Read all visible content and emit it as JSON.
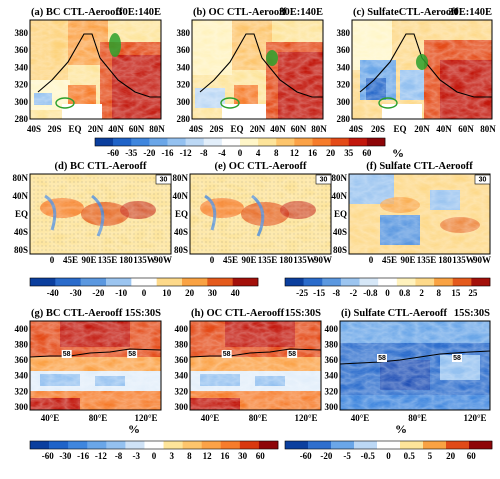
{
  "chart_data": [
    {
      "type": "heatmap",
      "panels": [
        {
          "label": "(a)",
          "title": "BC CTL-Aerooff",
          "region": "30E:140E"
        },
        {
          "label": "(b)",
          "title": "OC CTL-Aerooff",
          "region": "30E:140E"
        },
        {
          "label": "(c)",
          "title": "SulfateCTL-Aerooff",
          "region": "30E:140E"
        }
      ],
      "x_ticks": [
        "40S",
        "20S",
        "EQ",
        "20N",
        "40N",
        "60N",
        "80N"
      ],
      "xlim": [
        -45,
        85
      ],
      "y_ticks": [
        280,
        300,
        320,
        340,
        360,
        380
      ],
      "ylim": [
        280,
        395
      ],
      "colorbar": {
        "ticks": [
          "-60",
          "-35",
          "-20",
          "-16",
          "-12",
          "-8",
          "-4",
          "0",
          "4",
          "8",
          "12",
          "16",
          "20",
          "35",
          "60"
        ],
        "colors": [
          "#0b3f9e",
          "#1f63c8",
          "#3f86de",
          "#6aa6e8",
          "#94c1f0",
          "#bcd8f5",
          "#e2eefa",
          "#ffffff",
          "#fff6c8",
          "#fde49a",
          "#fdc56c",
          "#fba247",
          "#f67c2b",
          "#e44b18",
          "#c2170c",
          "#8e0508"
        ],
        "unit": "%"
      }
    },
    {
      "type": "heatmap",
      "panels": [
        {
          "label": "(d)",
          "title": "BC CTL-Aerooff",
          "vector_ref": "30"
        },
        {
          "label": "(e)",
          "title": "OC CTL-Aerooff",
          "vector_ref": "30"
        },
        {
          "label": "(f)",
          "title": "Sulfate CTL-Aerooff",
          "vector_ref": "30"
        }
      ],
      "y_ticks": [
        "80N",
        "40N",
        "EQ",
        "40S",
        "80S"
      ],
      "x_ticks": [
        "0",
        "45E",
        "90E",
        "135E",
        "180",
        "135W",
        "90W"
      ],
      "colorbars": [
        {
          "ticks": [
            "-40",
            "-30",
            "-20",
            "-10",
            "0",
            "10",
            "20",
            "30",
            "40"
          ],
          "colors": [
            "#0b3f9e",
            "#2a6bcb",
            "#5b98e0",
            "#9cc5f0",
            "#ffffff",
            "#fdd98a",
            "#f9a243",
            "#e45a1c",
            "#a3100a"
          ]
        },
        {
          "ticks": [
            "-25",
            "-15",
            "-8",
            "-2",
            "-0.8",
            "0",
            "0.8",
            "2",
            "8",
            "15",
            "25"
          ],
          "colors": [
            "#0b3f9e",
            "#2a6bcb",
            "#5b98e0",
            "#9cc5f0",
            "#d6e7f7",
            "#ffffff",
            "#fff2bd",
            "#fdd98a",
            "#f9a243",
            "#e45a1c",
            "#a3100a"
          ]
        }
      ]
    },
    {
      "type": "heatmap",
      "panels": [
        {
          "label": "(g)",
          "title": "BC CTL-Aerooff",
          "region": "15S:30S"
        },
        {
          "label": "(h)",
          "title": "OC CTL-Aerooff",
          "region": "15S:30S"
        },
        {
          "label": "(i)",
          "title": "Sulfate CTL-Aerooff",
          "region": "15S:30S"
        }
      ],
      "x_ticks": [
        "40°E",
        "80°E",
        "120°E"
      ],
      "y_ticks": [
        300,
        320,
        340,
        360,
        380,
        400
      ],
      "ylim": [
        296,
        410
      ],
      "contour_labels": [
        "58",
        "58"
      ],
      "colorbars": [
        {
          "ticks": [
            "-60",
            "-30",
            "-16",
            "-12",
            "-8",
            "-3",
            "0",
            "3",
            "8",
            "12",
            "16",
            "30",
            "60"
          ],
          "colors": [
            "#0b3f9e",
            "#1f63c8",
            "#3f86de",
            "#6aa6e8",
            "#94c1f0",
            "#cfe2f6",
            "#ffffff",
            "#fde49a",
            "#fdc56c",
            "#fba247",
            "#f67c2b",
            "#d9380f",
            "#8e0508"
          ]
        },
        {
          "ticks": [
            "-60",
            "-20",
            "-5",
            "-0.5",
            "0",
            "0.5",
            "5",
            "20",
            "60"
          ],
          "colors": [
            "#0b3f9e",
            "#2f6fcd",
            "#6aa6e8",
            "#bcd8f5",
            "#ffffff",
            "#fde49a",
            "#f9a243",
            "#e04a18",
            "#8e0508"
          ]
        }
      ],
      "unit": "%"
    }
  ]
}
